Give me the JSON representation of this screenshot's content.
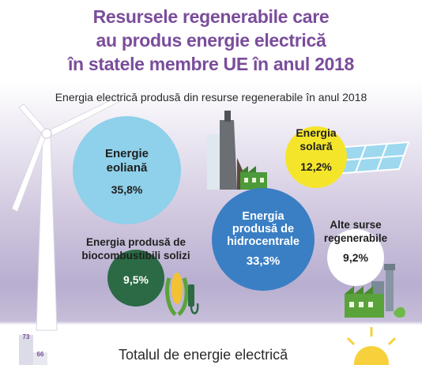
{
  "title_lines": [
    "Resursele regenerabile care",
    "au produs energie electrică",
    "în statele membre UE în anul 2018"
  ],
  "subtitle": "Energia electrică produsă din resurse regenerabile în anul 2018",
  "colors": {
    "title": "#7a4d9b",
    "wind": "#8fd0ea",
    "hydro": "#3a7fc4",
    "solar": "#f5e52a",
    "biofuel": "#2b6a45",
    "other": "#ffffff"
  },
  "chart_data": {
    "type": "bubble",
    "title": "Resursele regenerabile care au produs energie electrică în statele membre UE în anul 2018",
    "subtitle": "Energia electrică produsă din resurse regenerabile în anul 2018",
    "unit": "%",
    "items": [
      {
        "label_lines": [
          "Energie",
          "eoliană"
        ],
        "value": 35.8,
        "display": "35,8%"
      },
      {
        "label_lines": [
          "Energia",
          "produsă de",
          "hidrocentrale"
        ],
        "value": 33.3,
        "display": "33,3%"
      },
      {
        "label_lines": [
          "Energia",
          "solară"
        ],
        "value": 12.2,
        "display": "12,2%"
      },
      {
        "label_lines": [
          "Energia produsă de",
          "biocombustibili solizi"
        ],
        "value": 9.5,
        "display": "9,5%"
      },
      {
        "label_lines": [
          "Alte surse",
          "regenerabile"
        ],
        "value": 9.2,
        "display": "9,2%"
      }
    ]
  },
  "bottom_section": {
    "heading": "Totalul de energie electrică",
    "bar_labels": [
      "73",
      "66"
    ]
  }
}
